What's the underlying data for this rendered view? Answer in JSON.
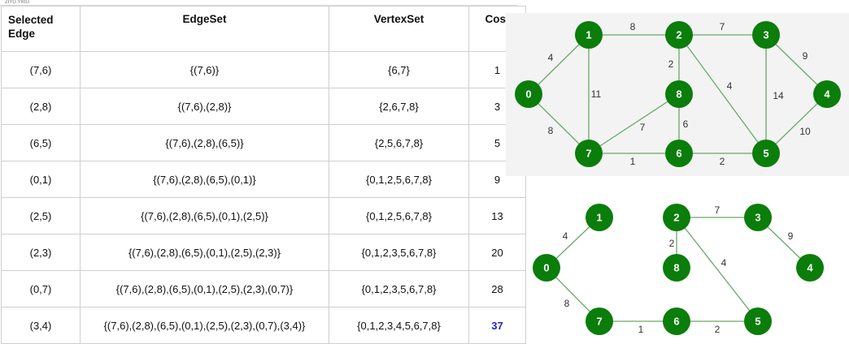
{
  "header_mark": "ZIYG YRIG",
  "table": {
    "headers": [
      "Selected Edge",
      "EdgeSet",
      "VertexSet",
      "Cost"
    ],
    "rows": [
      [
        "(7,6)",
        "{(7,6)}",
        "{6,7}",
        "1"
      ],
      [
        "(2,8)",
        "{(7,6),(2,8)}",
        "{2,6,7,8}",
        "3"
      ],
      [
        "(6,5)",
        "{(7,6),(2,8),(6,5)}",
        "{2,5,6,7,8}",
        "5"
      ],
      [
        "(0,1)",
        "{(7,6),(2,8),(6,5),(0,1)}",
        "{0,1,2,5,6,7,8}",
        "9"
      ],
      [
        "(2,5)",
        "{(7,6),(2,8),(6,5),(0,1),(2,5)}",
        "{0,1,2,5,6,7,8}",
        "13"
      ],
      [
        "(2,3)",
        "{(7,6),(2,8),(6,5),(0,1),(2,5),(2,3)}",
        "{0,1,2,3,5,6,7,8}",
        "20"
      ],
      [
        "(0,7)",
        "{(7,6),(2,8),(6,5),(0,1),(2,5),(2,3),(0,7)}",
        "{0,1,2,3,5,6,7,8}",
        "28"
      ],
      [
        "(3,4)",
        "{(7,6),(2,8),(6,5),(0,1),(2,5),(2,3),(0,7),(3,4)}",
        "{0,1,2,3,4,5,6,7,8}",
        "37"
      ]
    ],
    "highlight_color": "#2222dd"
  },
  "graph_full": {
    "nodes": [
      "0",
      "1",
      "2",
      "3",
      "4",
      "5",
      "6",
      "7",
      "8"
    ],
    "edges": [
      {
        "a": "0",
        "b": "1",
        "w": "4"
      },
      {
        "a": "1",
        "b": "2",
        "w": "8"
      },
      {
        "a": "2",
        "b": "3",
        "w": "7"
      },
      {
        "a": "3",
        "b": "4",
        "w": "9"
      },
      {
        "a": "0",
        "b": "7",
        "w": "8"
      },
      {
        "a": "1",
        "b": "7",
        "w": "11"
      },
      {
        "a": "2",
        "b": "8",
        "w": "2"
      },
      {
        "a": "2",
        "b": "5",
        "w": "4"
      },
      {
        "a": "3",
        "b": "5",
        "w": "14"
      },
      {
        "a": "4",
        "b": "5",
        "w": "10"
      },
      {
        "a": "7",
        "b": "8",
        "w": "7"
      },
      {
        "a": "8",
        "b": "6",
        "w": "6"
      },
      {
        "a": "7",
        "b": "6",
        "w": "1"
      },
      {
        "a": "6",
        "b": "5",
        "w": "2"
      }
    ]
  },
  "graph_mst": {
    "nodes": [
      "0",
      "1",
      "2",
      "3",
      "4",
      "5",
      "6",
      "7",
      "8"
    ],
    "edges": [
      {
        "a": "0",
        "b": "1",
        "w": "4"
      },
      {
        "a": "2",
        "b": "3",
        "w": "7"
      },
      {
        "a": "3",
        "b": "4",
        "w": "9"
      },
      {
        "a": "2",
        "b": "8",
        "w": "2"
      },
      {
        "a": "2",
        "b": "5",
        "w": "4"
      },
      {
        "a": "0",
        "b": "7",
        "w": "8"
      },
      {
        "a": "7",
        "b": "6",
        "w": "1"
      },
      {
        "a": "6",
        "b": "5",
        "w": "2"
      }
    ]
  },
  "colors": {
    "node_fill": "#0a7d0a",
    "edge_stroke": "#6aa86a",
    "panel_bg": "#f3f3f3"
  }
}
